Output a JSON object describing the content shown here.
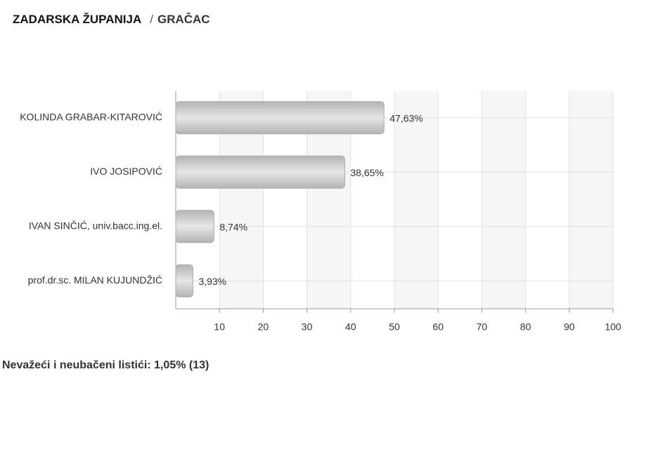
{
  "header": {
    "region": "ZADARSKA ŽUPANIJA",
    "separator": "/",
    "place": "GRAČAC"
  },
  "chart_data": {
    "type": "bar",
    "orientation": "horizontal",
    "categories": [
      "KOLINDA GRABAR-KITAROVIĆ",
      "IVO JOSIPOVIĆ",
      "IVAN SINČIĆ, univ.bacc.ing.el.",
      "prof.dr.sc. MILAN KUJUNDŽIĆ"
    ],
    "values": [
      47.63,
      38.65,
      8.74,
      3.93
    ],
    "value_labels": [
      "47,63%",
      "38,65%",
      "8,74%",
      "3,93%"
    ],
    "color": "#b4b4b4",
    "xlim": [
      0,
      100
    ],
    "xticks": [
      10,
      20,
      30,
      40,
      50,
      60,
      70,
      80,
      90,
      100
    ],
    "grid": true
  },
  "footer": {
    "note": "Nevažeći i neubačeni listići: 1,05% (13)"
  }
}
